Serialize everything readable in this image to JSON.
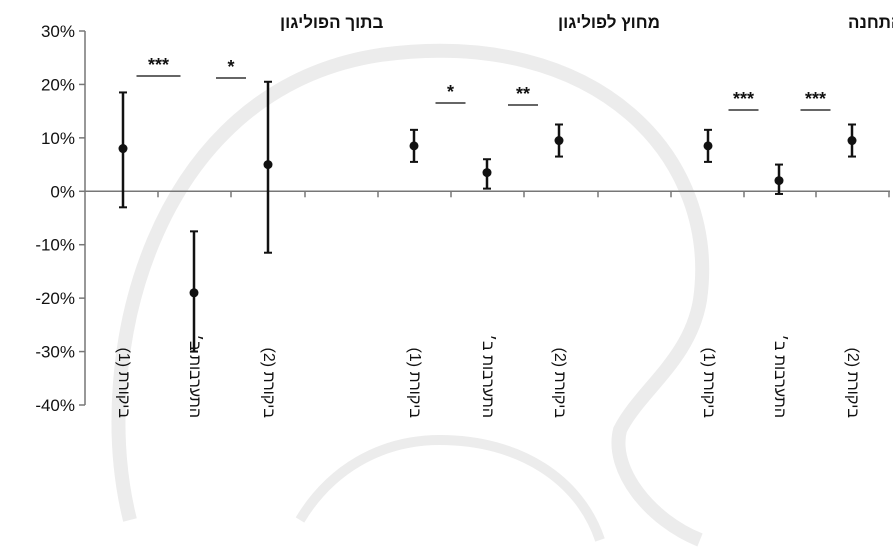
{
  "chart_data": {
    "type": "scatter",
    "ylim": [
      -40,
      30
    ],
    "yticks": [
      30,
      20,
      10,
      0,
      -10,
      -20,
      -30,
      -40
    ],
    "ytick_labels": [
      "30%",
      "20%",
      "10%",
      "0%",
      "-10%",
      "-20%",
      "-30%",
      "-40%"
    ],
    "grid": false,
    "groups": [
      {
        "title": "בתוך הפוליגון",
        "points": [
          {
            "label": "ביקורת (1)",
            "value": 8,
            "lower": -3,
            "upper": 18.5
          },
          {
            "label": "התערבות ב׳",
            "value": -19,
            "lower": -30,
            "upper": -7.5
          },
          {
            "label": "ביקורת (2)",
            "value": 5,
            "lower": -11.5,
            "upper": 20.5
          }
        ],
        "significance": [
          {
            "between": [
              0,
              1
            ],
            "label": "***"
          },
          {
            "between": [
              1,
              2
            ],
            "label": "*"
          }
        ]
      },
      {
        "title": "מחוץ לפוליגון",
        "points": [
          {
            "label": "ביקורת (1)",
            "value": 8.5,
            "lower": 5.5,
            "upper": 11.5
          },
          {
            "label": "התערבות ב׳",
            "value": 3.5,
            "lower": 0.5,
            "upper": 6
          },
          {
            "label": "ביקורת (2)",
            "value": 9.5,
            "lower": 6.5,
            "upper": 12.5
          }
        ],
        "significance": [
          {
            "between": [
              0,
              1
            ],
            "label": "*"
          },
          {
            "between": [
              1,
              2
            ],
            "label": "**"
          }
        ]
      },
      {
        "title": "כלל התחנה",
        "points": [
          {
            "label": "ביקורת (1)",
            "value": 8.5,
            "lower": 5.5,
            "upper": 11.5
          },
          {
            "label": "התערבות ב׳",
            "value": 2,
            "lower": -0.5,
            "upper": 5
          },
          {
            "label": "ביקורת (2)",
            "value": 9.5,
            "lower": 6.5,
            "upper": 12.5
          }
        ],
        "significance": [
          {
            "between": [
              0,
              1
            ],
            "label": "***"
          },
          {
            "between": [
              1,
              2
            ],
            "label": "***"
          }
        ]
      }
    ]
  }
}
